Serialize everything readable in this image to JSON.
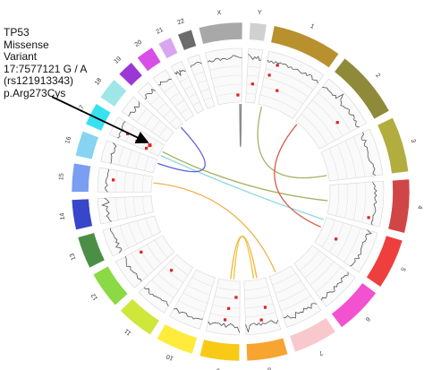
{
  "annotation": {
    "gene": "TP53",
    "type": "Missense",
    "type2": "Variant",
    "position": "17:7577121 G / A",
    "rsid": "(rs121913343)",
    "protein": "p.Arg273Cys"
  },
  "chromosomes": [
    {
      "label": "1",
      "size": 249,
      "color": "#b8902e"
    },
    {
      "label": "2",
      "size": 243,
      "color": "#8f8a3a"
    },
    {
      "label": "3",
      "size": 198,
      "color": "#b2ad3f"
    },
    {
      "label": "4",
      "size": 191,
      "color": "#d04646"
    },
    {
      "label": "5",
      "size": 181,
      "color": "#ee3e3e"
    },
    {
      "label": "6",
      "size": 171,
      "color": "#f251d0"
    },
    {
      "label": "7",
      "size": 159,
      "color": "#f9c8cc"
    },
    {
      "label": "8",
      "size": 146,
      "color": "#f7a430"
    },
    {
      "label": "9",
      "size": 141,
      "color": "#f8ca16"
    },
    {
      "label": "10",
      "size": 136,
      "color": "#ffeb3b"
    },
    {
      "label": "11",
      "size": 135,
      "color": "#cfe63b"
    },
    {
      "label": "12",
      "size": 133,
      "color": "#8bd945"
    },
    {
      "label": "13",
      "size": 115,
      "color": "#4a8f45"
    },
    {
      "label": "14",
      "size": 107,
      "color": "#3747c9"
    },
    {
      "label": "15",
      "size": 102,
      "color": "#7a9ef0"
    },
    {
      "label": "16",
      "size": 90,
      "color": "#86d3f2"
    },
    {
      "label": "17",
      "size": 81,
      "color": "#37e2f0"
    },
    {
      "label": "18",
      "size": 78,
      "color": "#9fe6e6"
    },
    {
      "label": "19",
      "size": 59,
      "color": "#9c37d6"
    },
    {
      "label": "20",
      "size": 63,
      "color": "#d84fe8"
    },
    {
      "label": "21",
      "size": 48,
      "color": "#d9a5ef"
    },
    {
      "label": "22",
      "size": 51,
      "color": "#6b6b6b"
    },
    {
      "label": "X",
      "size": 155,
      "color": "#a8a8a8"
    },
    {
      "label": "Y",
      "size": 59,
      "color": "#d0d0d0"
    }
  ],
  "links": [
    {
      "from": [
        "17",
        0.1
      ],
      "to": [
        "5",
        0.1
      ],
      "color": "#8fd8e0"
    },
    {
      "from": [
        "17",
        0.45
      ],
      "to": [
        "4",
        0.55
      ],
      "color": "#a3ad5a"
    },
    {
      "from": [
        "16",
        0.75
      ],
      "to": [
        "19",
        0.55
      ],
      "color": "#5f5fd6"
    },
    {
      "from": [
        "15",
        0.6
      ],
      "to": [
        "7",
        0.7
      ],
      "color": "#f2b04e"
    },
    {
      "from": [
        "1",
        0.1
      ],
      "to": [
        "3",
        0.8
      ],
      "color": "#a9b06a"
    },
    {
      "from": [
        "X",
        0.92
      ],
      "to": [
        "X",
        0.98
      ],
      "color": "#8a8a8a"
    },
    {
      "from": [
        "2",
        0.08
      ],
      "to": [
        "5",
        0.4
      ],
      "color": "#d85a4a"
    },
    {
      "from": [
        "8",
        0.55
      ],
      "to": [
        "9",
        0.3
      ],
      "color": "#f2c22a"
    },
    {
      "from": [
        "8",
        0.4
      ],
      "to": [
        "9",
        0.45
      ],
      "color": "#f0b23a"
    }
  ],
  "variants": [
    [
      "X",
      0.85
    ],
    [
      "Y",
      0.55
    ],
    [
      "1",
      0.1
    ],
    [
      "1",
      0.2
    ],
    [
      "1",
      0.35
    ],
    [
      "2",
      0.7
    ],
    [
      "4",
      0.85
    ],
    [
      "5",
      0.55
    ],
    [
      "8",
      0.3
    ],
    [
      "8",
      0.5
    ],
    [
      "9",
      0.15
    ],
    [
      "9",
      0.4
    ],
    [
      "9",
      0.48
    ],
    [
      "11",
      0.7
    ],
    [
      "12",
      0.85
    ],
    [
      "15",
      0.55
    ],
    [
      "17",
      0.15
    ],
    [
      "17",
      0.3
    ],
    [
      "17",
      0.45
    ]
  ]
}
